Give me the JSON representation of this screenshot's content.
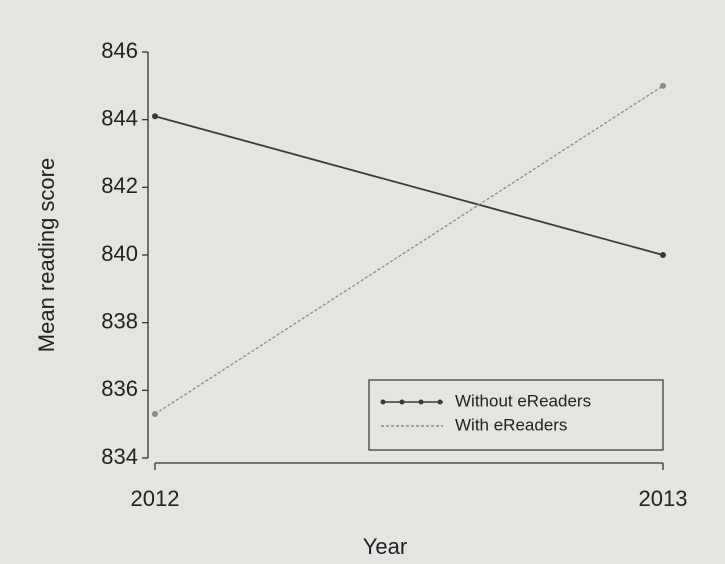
{
  "chart_data": {
    "type": "line",
    "x": [
      2012,
      2013
    ],
    "xlim": [
      2012,
      2013
    ],
    "xticks": [
      2012,
      2013
    ],
    "ylim": [
      834,
      846
    ],
    "yticks": [
      834,
      836,
      838,
      840,
      842,
      844,
      846
    ],
    "xlabel": "Year",
    "ylabel": "Mean reading score",
    "legend": "lower right",
    "series": [
      {
        "name": "Without eReaders",
        "color": "#3a3a3a",
        "linestyle": "solid",
        "values": [
          844.1,
          840.0
        ]
      },
      {
        "name": "With eReaders",
        "color": "#8a8a8a",
        "linestyle": "dotted",
        "values": [
          835.3,
          845.0
        ]
      }
    ]
  }
}
